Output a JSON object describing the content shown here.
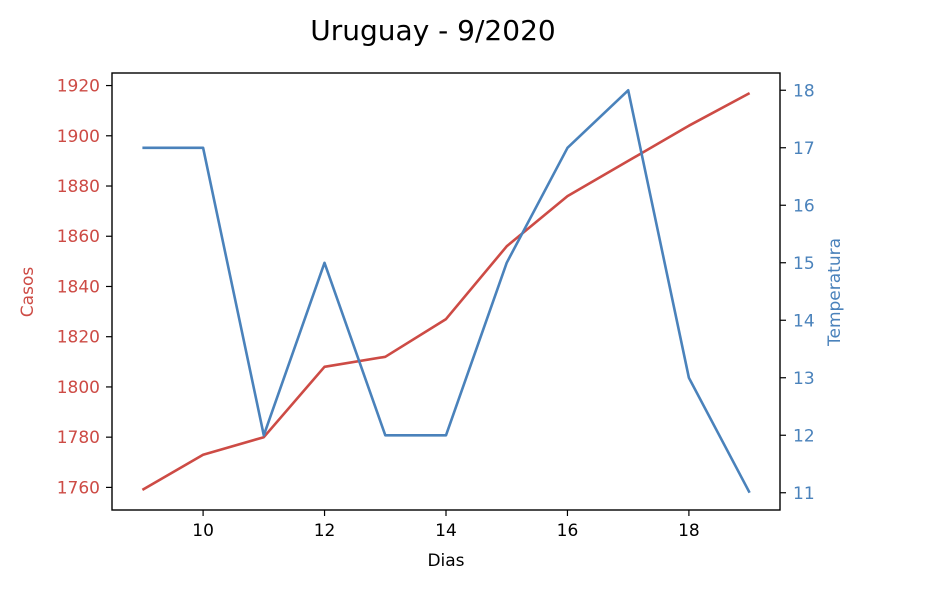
{
  "chart_data": {
    "type": "line",
    "title": "Uruguay - 9/2020",
    "xlabel": "Dias",
    "ylabel_left": "Casos",
    "ylabel_right": "Temperatura",
    "x": [
      9,
      10,
      11,
      12,
      13,
      14,
      15,
      16,
      17,
      18,
      19
    ],
    "xlim": [
      8.5,
      19.5
    ],
    "xticks": [
      10,
      12,
      14,
      16,
      18
    ],
    "ylim_left": [
      1751,
      1925
    ],
    "ylim_right": [
      10.7,
      18.3
    ],
    "yticks_left": [
      1760,
      1780,
      1800,
      1820,
      1840,
      1860,
      1880,
      1900,
      1920
    ],
    "yticks_right": [
      11,
      12,
      13,
      14,
      15,
      16,
      17,
      18
    ],
    "grid": false,
    "series": [
      {
        "name": "Casos",
        "axis": "left",
        "color": "#cd4b45",
        "values": [
          1759,
          1773,
          1780,
          1808,
          1812,
          1827,
          1856,
          1876,
          1890,
          1904,
          1917
        ]
      },
      {
        "name": "Temperatura",
        "axis": "right",
        "color": "#4a82bb",
        "values": [
          17,
          17,
          12,
          15,
          12,
          12,
          15,
          17,
          18,
          13,
          11
        ]
      }
    ]
  }
}
